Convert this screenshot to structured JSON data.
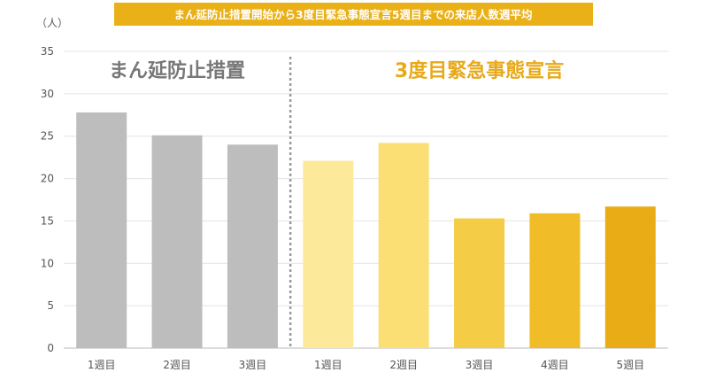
{
  "chart_data": {
    "type": "bar",
    "title": "まん延防止措置開始から3度目緊急事態宣言5週目までの来店人数週平均",
    "ylabel": "（人）",
    "ylim": [
      0,
      35
    ],
    "yticks": [
      0,
      5,
      10,
      15,
      20,
      25,
      30,
      35
    ],
    "grid": true,
    "categories": [
      "1週目",
      "2週目",
      "3週目",
      "1週目",
      "2週目",
      "3週目",
      "4週目",
      "5週目"
    ],
    "values": [
      27.8,
      25.1,
      24.0,
      22.1,
      24.2,
      15.3,
      15.9,
      16.7
    ],
    "bar_colors": [
      "#bdbdbd",
      "#bdbdbd",
      "#bdbdbd",
      "#fde99a",
      "#fbdf74",
      "#f5cc45",
      "#f0bd28",
      "#e9ac17"
    ],
    "periods": [
      {
        "label": "まん延防止措置",
        "start_index": 0,
        "end_index": 2,
        "color": "#777777"
      },
      {
        "label": "3度目緊急事態宣言",
        "start_index": 3,
        "end_index": 7,
        "color": "#e7a91a"
      }
    ],
    "title_bg_color": "#eab017"
  }
}
